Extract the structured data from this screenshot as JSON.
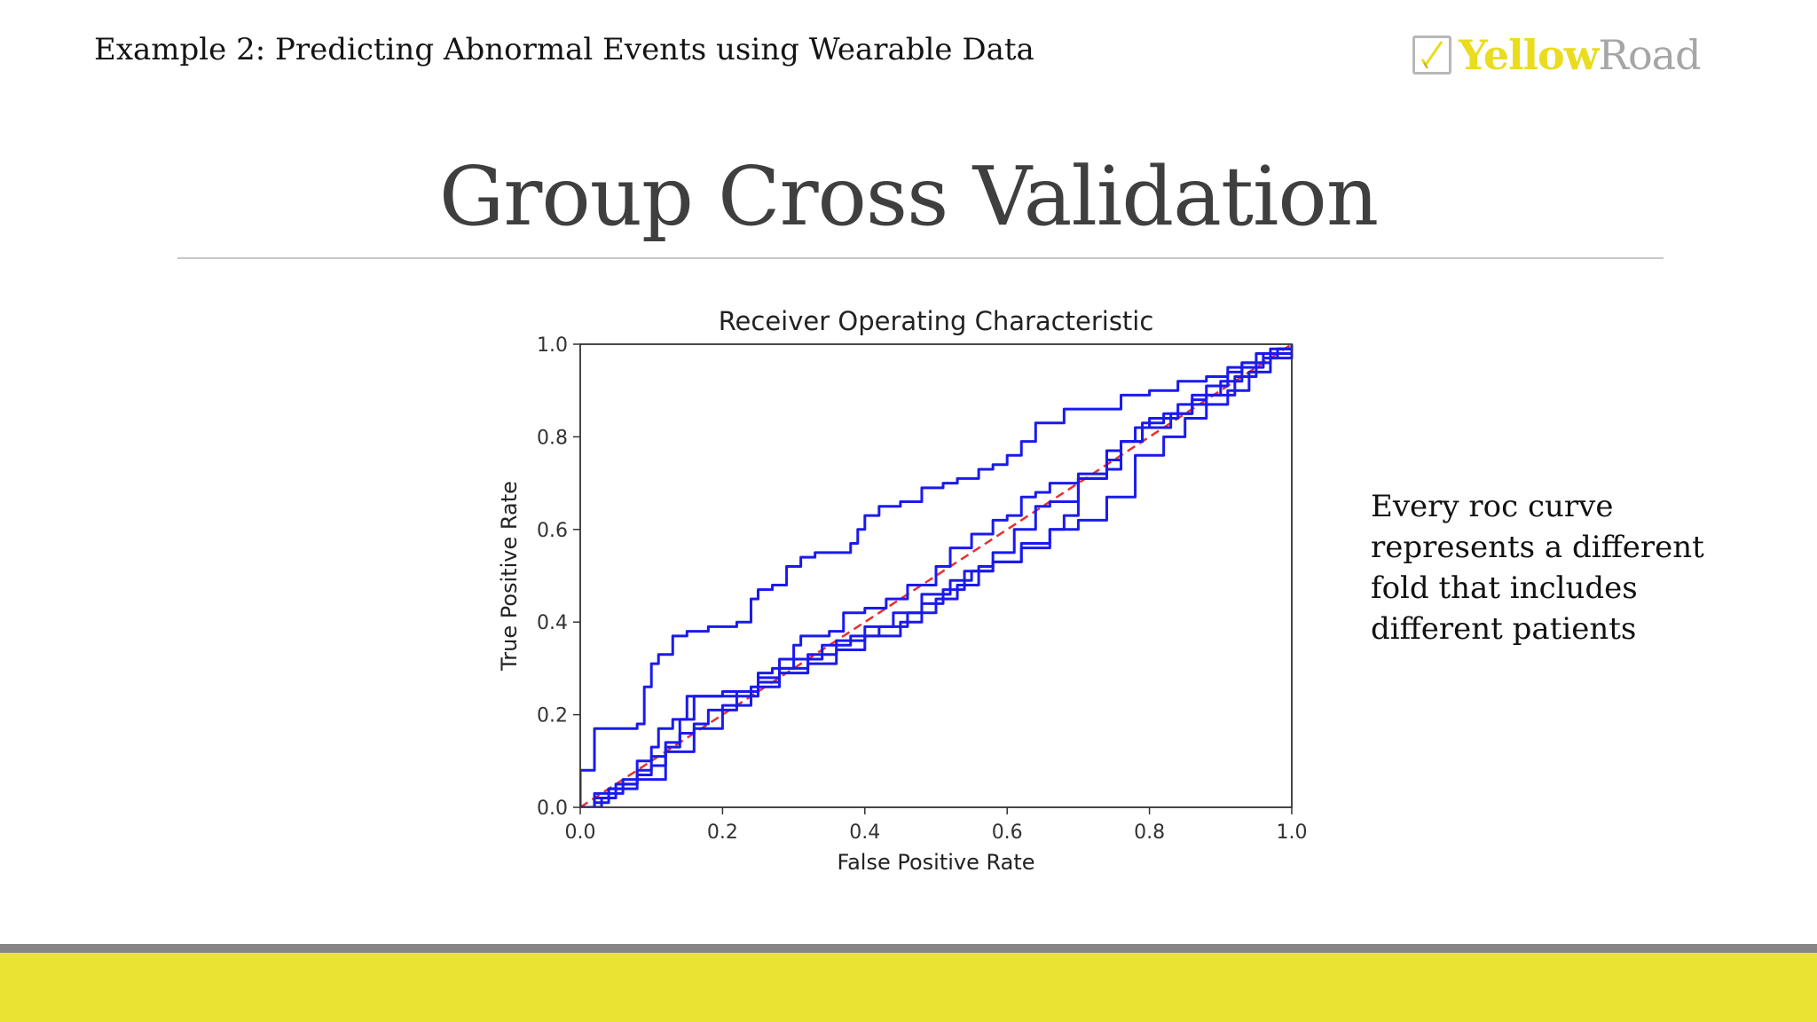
{
  "header": {
    "title": "Example 2: Predicting Abnormal Events using Wearable Data",
    "logo_part1": "Yellow",
    "logo_part2": "Road",
    "logo_icon": "pencil-check-icon"
  },
  "slide": {
    "title": "Group Cross Validation",
    "side_note": "Every roc curve represents a different fold that includes different patients"
  },
  "colors": {
    "curve": "#1a1aee",
    "chance": "#e8302a",
    "brand_yellow": "#ebe333",
    "band_gray": "#868686"
  },
  "chart_data": {
    "type": "line",
    "title": "Receiver Operating Characteristic",
    "xlabel": "False Positive Rate",
    "ylabel": "True Positive Rate",
    "xlim": [
      0.0,
      1.0
    ],
    "ylim": [
      0.0,
      1.0
    ],
    "xticks": [
      "0.0",
      "0.2",
      "0.4",
      "0.6",
      "0.8",
      "1.0"
    ],
    "yticks": [
      "0.0",
      "0.2",
      "0.4",
      "0.6",
      "0.8",
      "1.0"
    ],
    "grid": false,
    "legend": "none",
    "series": [
      {
        "x": [
          0.0,
          0.0,
          0.01,
          0.02,
          0.08,
          0.09,
          0.1,
          0.11,
          0.13,
          0.15,
          0.18,
          0.2,
          0.22,
          0.24,
          0.25,
          0.27,
          0.29,
          0.31,
          0.33,
          0.36,
          0.38,
          0.39,
          0.4,
          0.42,
          0.45,
          0.48,
          0.51,
          0.53,
          0.56,
          0.58,
          0.6,
          0.62,
          0.64,
          0.68,
          0.72,
          0.76,
          0.8,
          0.84,
          0.88,
          0.91,
          0.93,
          0.95,
          0.97,
          1.0
        ],
        "y": [
          0.0,
          0.08,
          0.08,
          0.17,
          0.18,
          0.26,
          0.31,
          0.33,
          0.37,
          0.38,
          0.39,
          0.39,
          0.4,
          0.45,
          0.47,
          0.48,
          0.52,
          0.54,
          0.55,
          0.55,
          0.57,
          0.6,
          0.63,
          0.65,
          0.66,
          0.69,
          0.7,
          0.71,
          0.73,
          0.74,
          0.76,
          0.79,
          0.83,
          0.86,
          0.86,
          0.89,
          0.9,
          0.92,
          0.93,
          0.95,
          0.96,
          0.98,
          0.99,
          1.0
        ]
      },
      {
        "x": [
          0.0,
          0.02,
          0.04,
          0.06,
          0.08,
          0.1,
          0.12,
          0.14,
          0.14,
          0.16,
          0.2,
          0.25,
          0.28,
          0.3,
          0.31,
          0.35,
          0.37,
          0.4,
          0.43,
          0.46,
          0.5,
          0.52,
          0.55,
          0.58,
          0.6,
          0.62,
          0.64,
          0.66,
          0.7,
          0.74,
          0.76,
          0.79,
          0.83,
          0.86,
          0.88,
          0.91,
          0.93,
          0.96,
          0.98,
          1.0
        ],
        "y": [
          0.0,
          0.02,
          0.04,
          0.04,
          0.08,
          0.11,
          0.14,
          0.18,
          0.19,
          0.24,
          0.25,
          0.28,
          0.32,
          0.35,
          0.37,
          0.38,
          0.42,
          0.43,
          0.45,
          0.48,
          0.52,
          0.56,
          0.59,
          0.62,
          0.63,
          0.67,
          0.68,
          0.7,
          0.72,
          0.77,
          0.79,
          0.82,
          0.85,
          0.88,
          0.91,
          0.94,
          0.96,
          0.98,
          0.99,
          1.0
        ]
      },
      {
        "x": [
          0.0,
          0.02,
          0.04,
          0.06,
          0.08,
          0.1,
          0.11,
          0.13,
          0.15,
          0.18,
          0.22,
          0.25,
          0.28,
          0.32,
          0.36,
          0.4,
          0.45,
          0.48,
          0.51,
          0.54,
          0.58,
          0.61,
          0.64,
          0.66,
          0.7,
          0.74,
          0.76,
          0.79,
          0.82,
          0.86,
          0.9,
          0.93,
          0.96,
          0.98,
          1.0
        ],
        "y": [
          0.0,
          0.03,
          0.04,
          0.06,
          0.1,
          0.13,
          0.17,
          0.19,
          0.24,
          0.24,
          0.24,
          0.27,
          0.29,
          0.31,
          0.34,
          0.37,
          0.4,
          0.44,
          0.47,
          0.51,
          0.55,
          0.6,
          0.65,
          0.66,
          0.71,
          0.75,
          0.79,
          0.83,
          0.85,
          0.89,
          0.92,
          0.95,
          0.97,
          0.99,
          1.0
        ]
      },
      {
        "x": [
          0.0,
          0.02,
          0.04,
          0.06,
          0.08,
          0.1,
          0.12,
          0.14,
          0.16,
          0.18,
          0.22,
          0.25,
          0.27,
          0.3,
          0.34,
          0.38,
          0.42,
          0.46,
          0.5,
          0.53,
          0.56,
          0.58,
          0.62,
          0.66,
          0.68,
          0.7,
          0.7,
          0.74,
          0.76,
          0.78,
          0.8,
          0.84,
          0.88,
          0.92,
          0.95,
          0.97,
          1.0
        ],
        "y": [
          0.0,
          0.01,
          0.03,
          0.05,
          0.07,
          0.09,
          0.13,
          0.16,
          0.18,
          0.21,
          0.25,
          0.29,
          0.3,
          0.32,
          0.35,
          0.37,
          0.39,
          0.42,
          0.45,
          0.48,
          0.52,
          0.53,
          0.56,
          0.6,
          0.63,
          0.65,
          0.71,
          0.73,
          0.79,
          0.82,
          0.84,
          0.87,
          0.89,
          0.93,
          0.96,
          0.98,
          1.0
        ]
      },
      {
        "x": [
          0.0,
          0.03,
          0.05,
          0.08,
          0.12,
          0.16,
          0.2,
          0.24,
          0.28,
          0.32,
          0.36,
          0.4,
          0.44,
          0.48,
          0.52,
          0.55,
          0.58,
          0.62,
          0.66,
          0.7,
          0.74,
          0.78,
          0.82,
          0.85,
          0.88,
          0.91,
          0.94,
          0.97,
          1.0
        ],
        "y": [
          0.0,
          0.02,
          0.05,
          0.06,
          0.12,
          0.17,
          0.22,
          0.26,
          0.3,
          0.33,
          0.36,
          0.39,
          0.42,
          0.46,
          0.49,
          0.51,
          0.53,
          0.57,
          0.6,
          0.62,
          0.67,
          0.76,
          0.8,
          0.84,
          0.87,
          0.9,
          0.94,
          0.97,
          1.0
        ]
      }
    ],
    "chance_line": {
      "x": [
        0.0,
        1.0
      ],
      "y": [
        0.0,
        1.0
      ],
      "style": "dashed"
    }
  }
}
